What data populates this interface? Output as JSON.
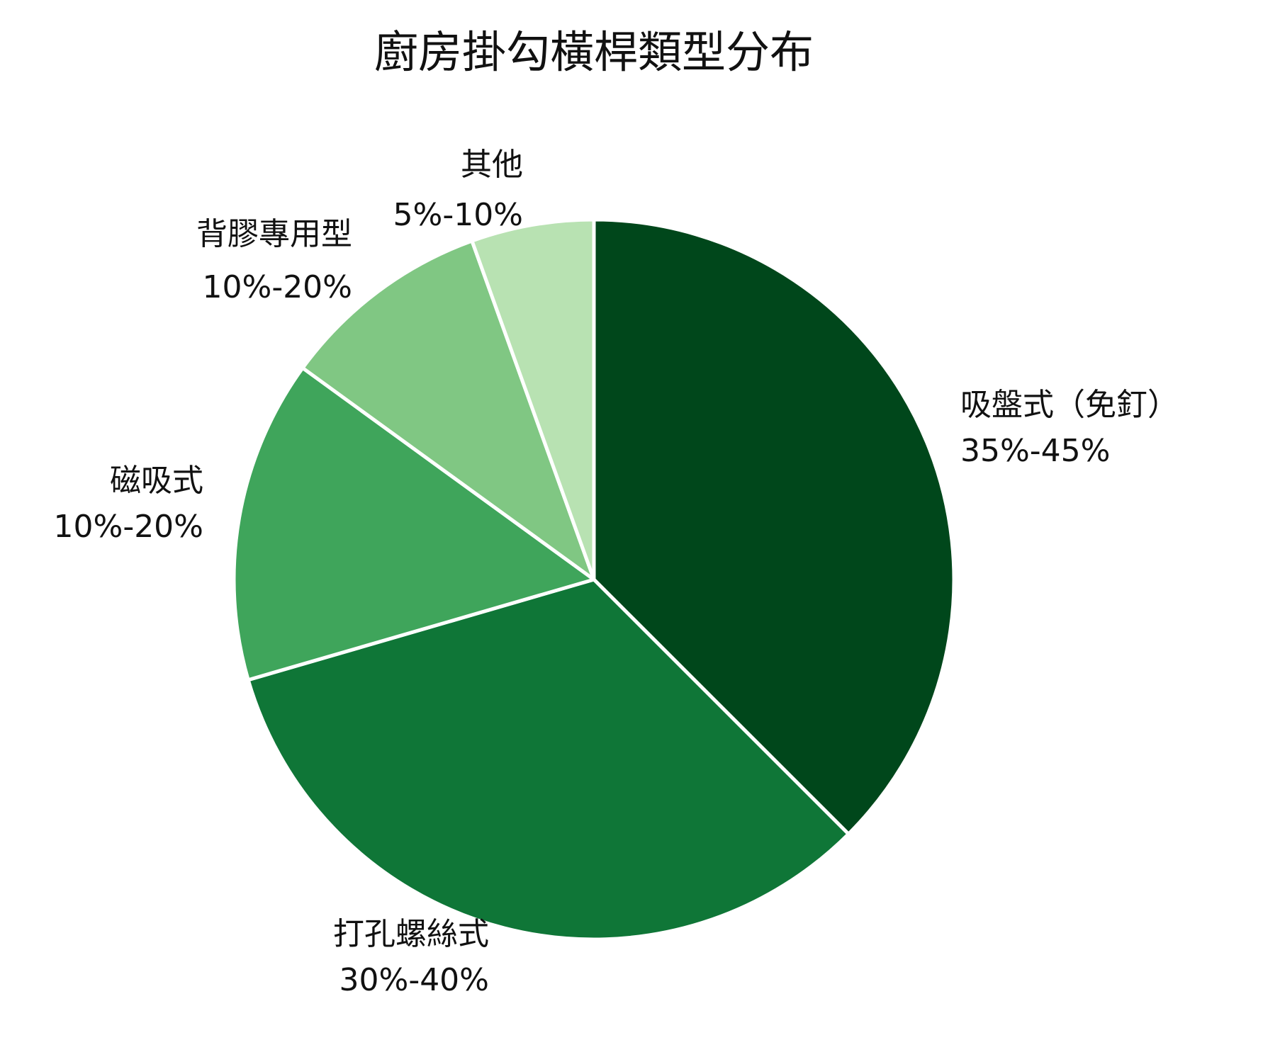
{
  "chart_data": {
    "type": "pie",
    "title": "廚房掛勾橫桿類型分布",
    "start_angle_deg": 0,
    "direction": "clockwise",
    "slices": [
      {
        "label": "吸盤式（免釘）",
        "range": "35%-45%",
        "value": 37.5,
        "color": "#00471b"
      },
      {
        "label": "打孔螺絲式",
        "range": "30%-40%",
        "value": 33.0,
        "color": "#0f7637"
      },
      {
        "label": "磁吸式",
        "range": "10%-20%",
        "value": 14.5,
        "color": "#3fa55b"
      },
      {
        "label": "背膠專用型",
        "range": "10%-20%",
        "value": 9.5,
        "color": "#80c783"
      },
      {
        "label": "其他",
        "range": "5%-10%",
        "value": 5.5,
        "color": "#b8e2b2"
      }
    ]
  }
}
